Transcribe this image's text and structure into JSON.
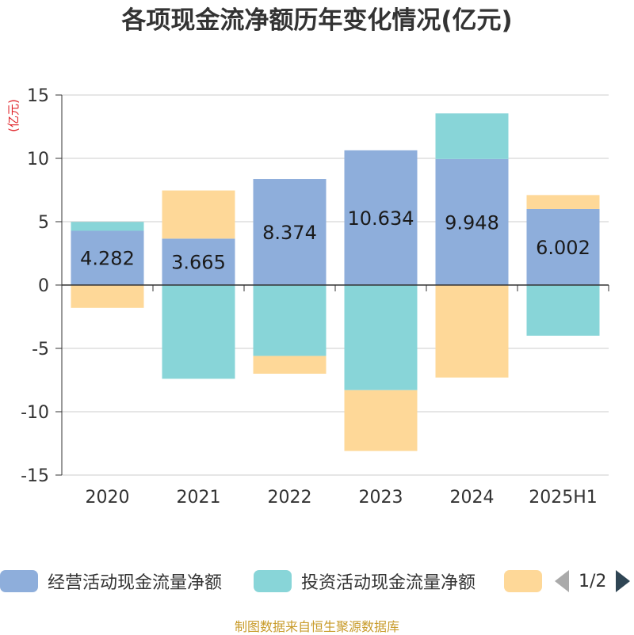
{
  "title": "各项现金流净额历年变化情况(亿元)",
  "unit_label": "(亿元)",
  "legend": {
    "items": [
      {
        "label": "经营活动现金流量净额",
        "color": "#8eaedb"
      },
      {
        "label": "投资活动现金流量净额",
        "color": "#88d5d8"
      },
      {
        "label": "",
        "color": "#fed898"
      }
    ],
    "page": "1/2"
  },
  "source": "制图数据来自恒生聚源数据库",
  "chart_data": {
    "type": "bar",
    "stacked": true,
    "categories": [
      "2020",
      "2021",
      "2022",
      "2023",
      "2024",
      "2025H1"
    ],
    "ylim": [
      -15,
      15
    ],
    "yticks": [
      15,
      10,
      5,
      0,
      -5,
      -10,
      -15
    ],
    "ylabel": "(亿元)",
    "grid": true,
    "series": [
      {
        "name": "经营活动现金流量净额",
        "color": "#8eaedb",
        "values": [
          4.282,
          3.665,
          8.374,
          10.634,
          9.948,
          6.002
        ],
        "show_labels": true
      },
      {
        "name": "投资活动现金流量净额",
        "color": "#88d5d8",
        "values": [
          0.7,
          -7.4,
          -5.6,
          -8.3,
          3.6,
          -4.0
        ],
        "show_labels": false
      },
      {
        "name": "",
        "color": "#fed898",
        "values": [
          -1.8,
          3.8,
          -1.4,
          -4.8,
          -7.3,
          1.1
        ],
        "show_labels": false
      }
    ]
  }
}
